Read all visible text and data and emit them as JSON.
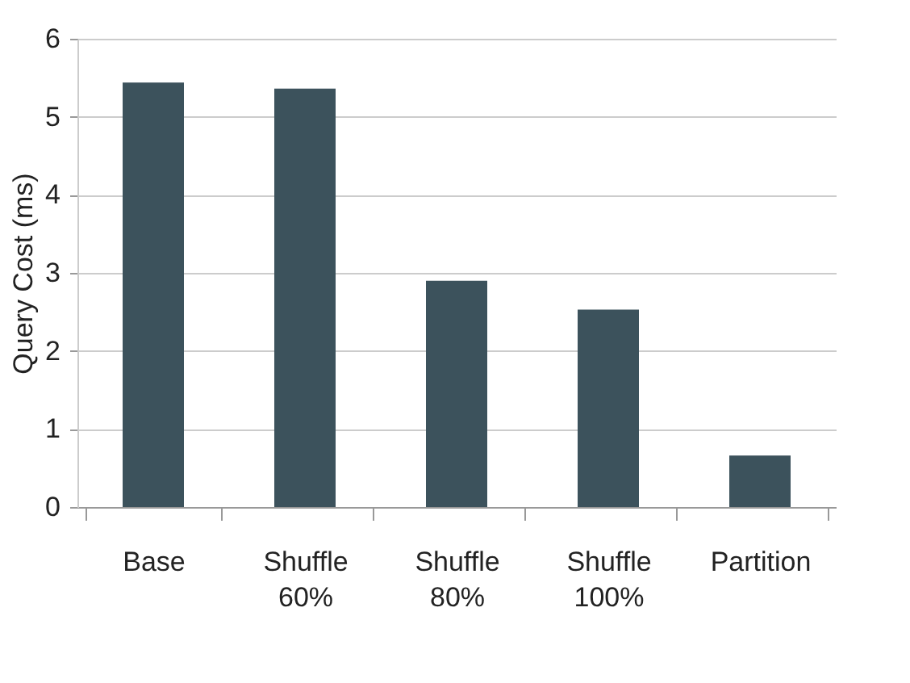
{
  "chart_data": {
    "type": "bar",
    "ylabel": "Query Cost (ms)",
    "categories": [
      "Base",
      "Shuffle\n60%",
      "Shuffle\n80%",
      "Shuffle\n100%",
      "Partition"
    ],
    "values": [
      5.44,
      5.36,
      2.9,
      2.53,
      0.66
    ],
    "color": "#3c525c",
    "ylim": [
      0,
      6
    ],
    "yticks": [
      0,
      1,
      2,
      3,
      4,
      5,
      6
    ],
    "grid": "y"
  }
}
